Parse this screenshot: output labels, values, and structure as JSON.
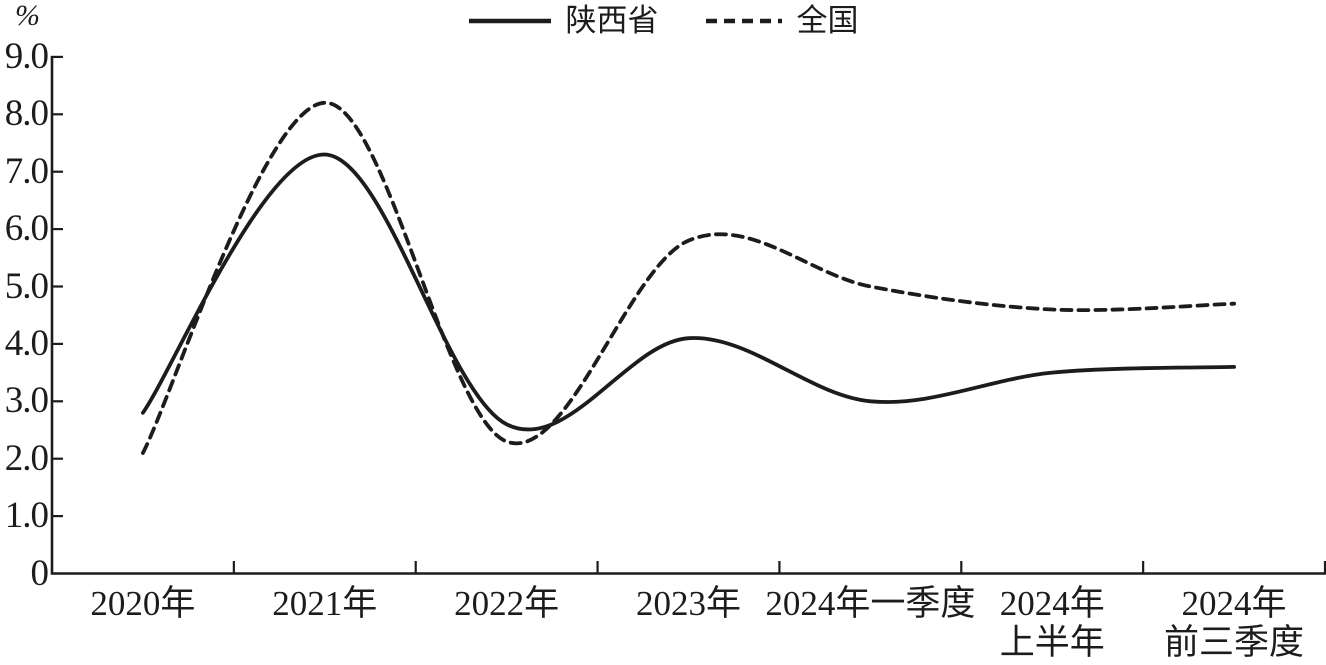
{
  "page": {
    "background": "#ffffff",
    "ink": "#1c1c1c"
  },
  "chart_data": {
    "type": "line",
    "unit_label": "%",
    "categories": [
      "2020年",
      "2021年",
      "2022年",
      "2023年",
      "2024年一季度",
      "2024年上半年",
      "2024年前三季度"
    ],
    "x_labels": [
      [
        "2020年"
      ],
      [
        "2021年"
      ],
      [
        "2022年"
      ],
      [
        "2023年"
      ],
      [
        "2024年一季度"
      ],
      [
        "2024年",
        "上半年"
      ],
      [
        "2024年",
        "前三季度"
      ]
    ],
    "y_ticks": [
      "0",
      "1.0",
      "2.0",
      "3.0",
      "4.0",
      "5.0",
      "6.0",
      "7.0",
      "8.0",
      "9.0"
    ],
    "ylim": [
      0,
      9
    ],
    "grid": false,
    "legend_position": "top-center",
    "line_smoothing": "spline",
    "series": [
      {
        "name": "陕西省",
        "style": "solid",
        "values": [
          2.8,
          7.3,
          2.6,
          4.1,
          3.0,
          3.5,
          3.6
        ]
      },
      {
        "name": "全国",
        "style": "dashed",
        "values": [
          2.1,
          8.2,
          2.3,
          5.8,
          5.0,
          4.6,
          4.7
        ]
      }
    ]
  }
}
